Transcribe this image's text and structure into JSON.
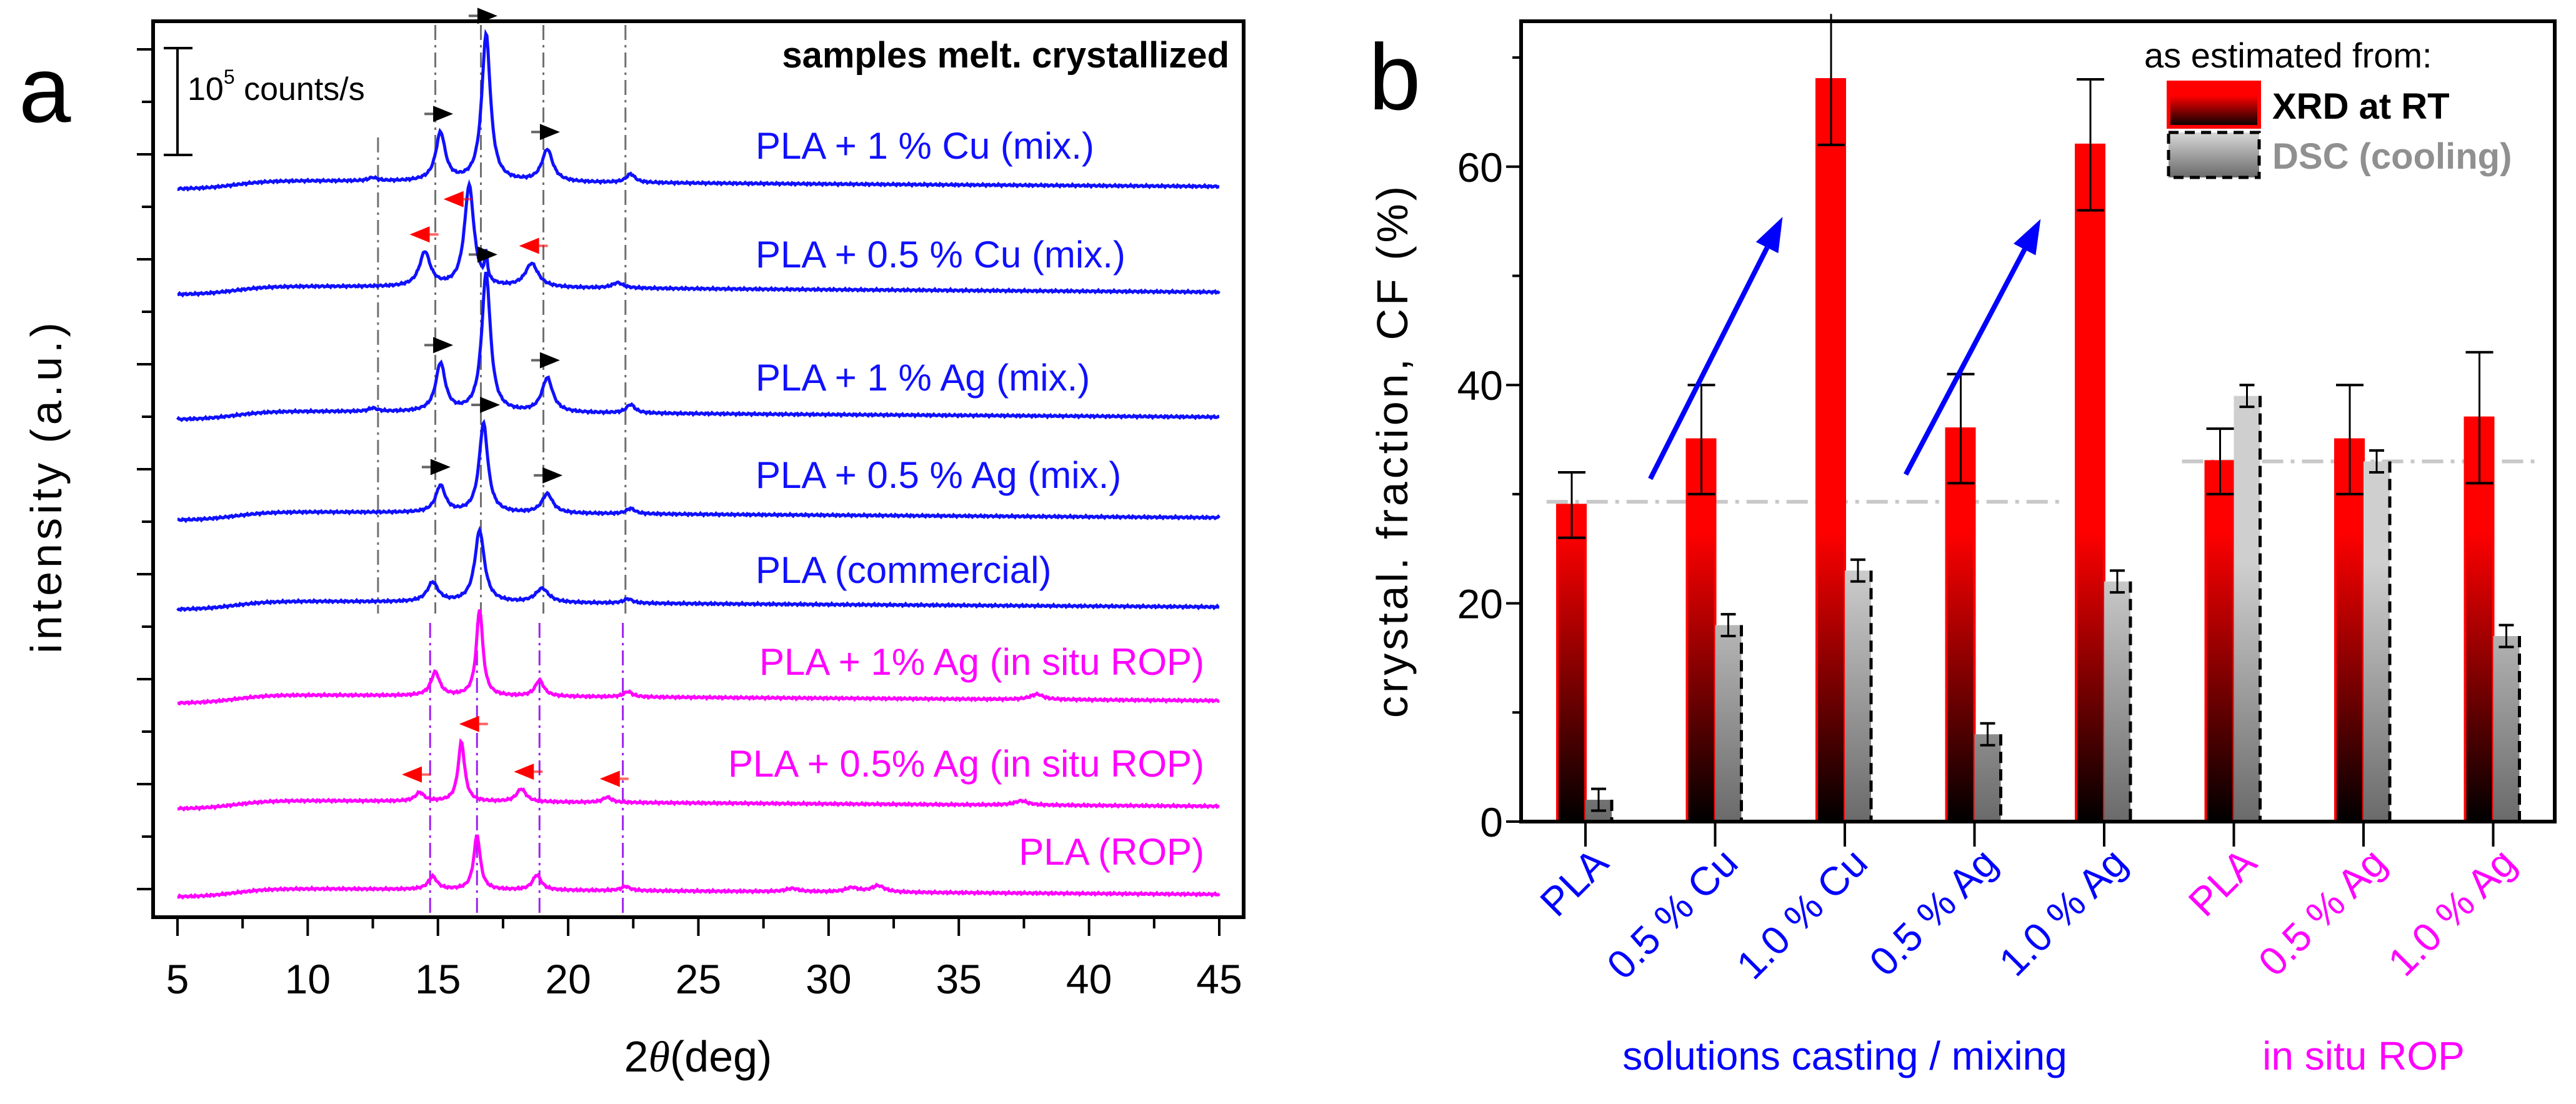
{
  "chart_data": [
    {
      "type": "line",
      "panel_label": "a",
      "title": "samples melt. crystallized",
      "xlabel_prefix": "2",
      "xlabel_symbol": "θ",
      "xlabel_unit": "(deg)",
      "ylabel": "intensity (a.u.)",
      "xlim": [
        5,
        45
      ],
      "xticks": [
        5,
        10,
        15,
        20,
        25,
        30,
        35,
        40,
        45
      ],
      "xtick_labels": [
        "5",
        "10",
        "15",
        "20",
        "25",
        "30",
        "35",
        "40",
        "45"
      ],
      "scale_bar": {
        "value_counts_per_s": 100000,
        "label_base": "10",
        "label_exp": "5",
        "label_unit": " counts/s"
      },
      "intensity_unit": "1e5 counts/s",
      "series": [
        {
          "name": "PLA + 1 % Cu (mix.)",
          "color": "#1010ff",
          "label_align": "left",
          "peaks": [
            [
              15.1,
              0.45,
              0.22
            ],
            [
              16.85,
              1.38,
              0.2
            ],
            [
              19.2,
              0.3,
              0.25
            ],
            [
              22.4,
              0.08,
              0.2
            ],
            [
              12.5,
              0.03,
              0.2
            ]
          ],
          "markers": [
            {
              "theta": 16.9,
              "dir": "right",
              "color": "#000000"
            },
            {
              "theta": 15.2,
              "dir": "right",
              "color": "#000000"
            },
            {
              "theta": 19.3,
              "dir": "right",
              "color": "#000000"
            }
          ]
        },
        {
          "name": "PLA + 0.5 % Cu (mix.)",
          "color": "#1010ff",
          "label_align": "left",
          "peaks": [
            [
              14.5,
              0.32,
              0.25
            ],
            [
              16.2,
              0.95,
              0.22
            ],
            [
              16.85,
              0.25,
              0.06
            ],
            [
              18.6,
              0.22,
              0.3
            ],
            [
              21.9,
              0.05,
              0.25
            ]
          ],
          "markers": [
            {
              "theta": 15.6,
              "dir": "left",
              "color": "#ff0000"
            },
            {
              "theta": 14.3,
              "dir": "left",
              "color": "#ff0000"
            },
            {
              "theta": 18.5,
              "dir": "left",
              "color": "#ff0000"
            }
          ]
        },
        {
          "name": "PLA + 1 % Ag (mix.)",
          "color": "#1010ff",
          "label_align": "left",
          "peaks": [
            [
              15.1,
              0.45,
              0.22
            ],
            [
              16.85,
              1.3,
              0.2
            ],
            [
              19.2,
              0.32,
              0.25
            ],
            [
              22.4,
              0.08,
              0.2
            ],
            [
              12.5,
              0.03,
              0.2
            ]
          ],
          "markers": [
            {
              "theta": 16.9,
              "dir": "right",
              "color": "#000000"
            },
            {
              "theta": 15.2,
              "dir": "right",
              "color": "#000000"
            },
            {
              "theta": 19.3,
              "dir": "right",
              "color": "#000000"
            }
          ]
        },
        {
          "name": "PLA + 0.5 % Ag (mix.)",
          "color": "#1010ff",
          "label_align": "left",
          "peaks": [
            [
              15.1,
              0.25,
              0.22
            ],
            [
              16.75,
              0.84,
              0.2
            ],
            [
              19.2,
              0.18,
              0.25
            ],
            [
              22.4,
              0.05,
              0.2
            ]
          ],
          "markers": [
            {
              "theta": 17.0,
              "dir": "right",
              "color": "#000000"
            },
            {
              "theta": 15.1,
              "dir": "right",
              "color": "#000000"
            },
            {
              "theta": 19.4,
              "dir": "right",
              "color": "#000000"
            }
          ]
        },
        {
          "name": "PLA (commercial)",
          "color": "#1010ff",
          "label_align": "left",
          "peaks": [
            [
              14.8,
              0.18,
              0.25
            ],
            [
              16.6,
              0.67,
              0.22
            ],
            [
              19.0,
              0.13,
              0.3
            ],
            [
              22.3,
              0.04,
              0.2
            ]
          ],
          "markers": []
        },
        {
          "name": "PLA + 1% Ag (in situ ROP)",
          "color": "#ff00ff",
          "label_align": "right",
          "peaks": [
            [
              14.9,
              0.22,
              0.2
            ],
            [
              16.6,
              0.81,
              0.15
            ],
            [
              18.9,
              0.15,
              0.2
            ],
            [
              22.3,
              0.05,
              0.2
            ],
            [
              38.0,
              0.05,
              0.3
            ]
          ],
          "markers": []
        },
        {
          "name": "PLA + 0.5% Ag (in situ ROP)",
          "color": "#ff00ff",
          "label_align": "right",
          "peaks": [
            [
              14.3,
              0.08,
              0.2
            ],
            [
              15.9,
              0.56,
              0.15
            ],
            [
              18.2,
              0.12,
              0.22
            ],
            [
              21.5,
              0.05,
              0.2
            ],
            [
              37.4,
              0.04,
              0.3
            ]
          ],
          "markers": [
            {
              "theta": 16.2,
              "dir": "left",
              "color": "#ff0000"
            },
            {
              "theta": 14.0,
              "dir": "left",
              "color": "#ff0000"
            },
            {
              "theta": 18.3,
              "dir": "left",
              "color": "#ff0000"
            },
            {
              "theta": 21.6,
              "dir": "left",
              "color": "#ff0000"
            }
          ]
        },
        {
          "name": "PLA (ROP)",
          "color": "#ff00ff",
          "label_align": "right",
          "peaks": [
            [
              14.8,
              0.12,
              0.2
            ],
            [
              16.5,
              0.51,
              0.15
            ],
            [
              18.8,
              0.14,
              0.2
            ],
            [
              22.2,
              0.04,
              0.2
            ],
            [
              30.9,
              0.04,
              0.3
            ],
            [
              31.9,
              0.06,
              0.3
            ],
            [
              28.6,
              0.03,
              0.3
            ]
          ],
          "markers": []
        }
      ],
      "reference_lines": [
        {
          "theta": 12.7,
          "color": "#707070",
          "from_series": 0,
          "to_series": 4
        },
        {
          "theta": 14.9,
          "color": "#707070",
          "from_series": 0,
          "to_series": 4
        },
        {
          "theta": 16.65,
          "color": "#707070",
          "from_series": 0,
          "to_series": 4
        },
        {
          "theta": 19.05,
          "color": "#707070",
          "from_series": 0,
          "to_series": 4
        },
        {
          "theta": 22.2,
          "color": "#707070",
          "from_series": 0,
          "to_series": 4
        },
        {
          "theta": 14.7,
          "color": "#a020f0",
          "from_series": 5,
          "to_series": 7
        },
        {
          "theta": 16.5,
          "color": "#a020f0",
          "from_series": 5,
          "to_series": 7
        },
        {
          "theta": 18.9,
          "color": "#a020f0",
          "from_series": 5,
          "to_series": 7
        },
        {
          "theta": 22.1,
          "color": "#a020f0",
          "from_series": 5,
          "to_series": 7
        }
      ]
    },
    {
      "type": "bar",
      "panel_label": "b",
      "ylabel": "crystal. fraction, CF (%)",
      "ylim": [
        0,
        73
      ],
      "yticks": [
        0,
        20,
        40,
        60
      ],
      "ytick_labels": [
        "0",
        "20",
        "40",
        "60"
      ],
      "categories": [
        "PLA",
        "0.5 % Cu",
        "1.0 % Cu",
        "0.5 % Ag",
        "1.0 % Ag",
        "PLA",
        "0.5 % Ag",
        "1.0 % Ag"
      ],
      "category_colors": [
        "#0000ff",
        "#0000ff",
        "#0000ff",
        "#0000ff",
        "#0000ff",
        "#ff00ff",
        "#ff00ff",
        "#ff00ff"
      ],
      "groups": [
        {
          "label": "solutions casting / mixing",
          "color": "#0000ff",
          "from": 0,
          "to": 4
        },
        {
          "label": "in situ ROP",
          "color": "#ff00ff",
          "from": 5,
          "to": 7
        }
      ],
      "legend_title": "as estimated from:",
      "legend_position": "top-right",
      "series": [
        {
          "name": "XRD at RT",
          "color": "#ff0000",
          "values": [
            29,
            35,
            68,
            36,
            62,
            33,
            35,
            37
          ],
          "errors": [
            3,
            5,
            6,
            5,
            6,
            3,
            5,
            6
          ]
        },
        {
          "name": "DSC (cooling)",
          "color": "#a0a0a0",
          "values": [
            2,
            18,
            23,
            8,
            22,
            39,
            33,
            17
          ],
          "errors": [
            1,
            1,
            1,
            1,
            1,
            1,
            1,
            1
          ]
        }
      ],
      "reference_lines": [
        {
          "y": 29.3,
          "x_from": -0.3,
          "x_to": 3.7,
          "color": "#c8c8c8"
        },
        {
          "y": 33,
          "x_from": 4.6,
          "x_to": 7.35,
          "color": "#c8c8c8"
        }
      ],
      "trend_arrows": [
        {
          "from": [
            0.5,
            31.4
          ],
          "to": [
            1.52,
            55.4
          ],
          "color": "#0000ff"
        },
        {
          "from": [
            2.47,
            31.8
          ],
          "to": [
            3.51,
            55.2
          ],
          "color": "#0000ff"
        }
      ]
    }
  ]
}
